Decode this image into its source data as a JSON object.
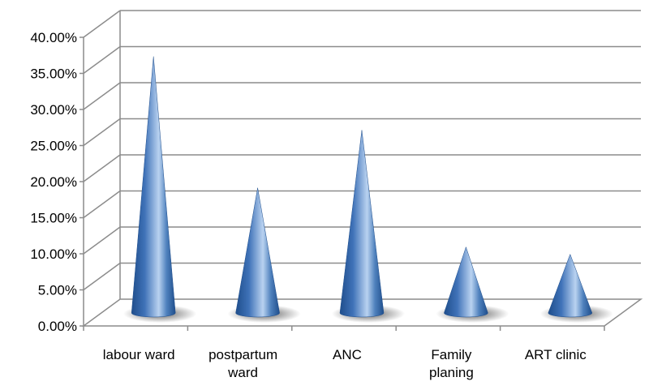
{
  "chart_data": {
    "type": "bar",
    "style": "3d-cone",
    "categories": [
      "labour ward",
      "postpartum ward",
      "ANC",
      "Family planing",
      "ART clinic"
    ],
    "category_lines": [
      [
        "labour ward"
      ],
      [
        "postpartum",
        "ward"
      ],
      [
        "ANC"
      ],
      [
        "Family",
        "planing"
      ],
      [
        "ART clinic"
      ]
    ],
    "values": [
      37.0,
      18.8,
      26.8,
      10.6,
      9.6
    ],
    "value_format": "percent",
    "yticks": [
      "0.00%",
      "5.00%",
      "10.00%",
      "15.00%",
      "20.00%",
      "25.00%",
      "30.00%",
      "35.00%",
      "40.00%"
    ],
    "ylim": [
      0,
      40
    ],
    "grid": true,
    "colors": {
      "cone": "#4F81BD",
      "cone_dark": "#1F4E8C",
      "cone_light": "#B9D2F0",
      "grid": "#8C8C8C",
      "shadow": "#555555"
    }
  }
}
